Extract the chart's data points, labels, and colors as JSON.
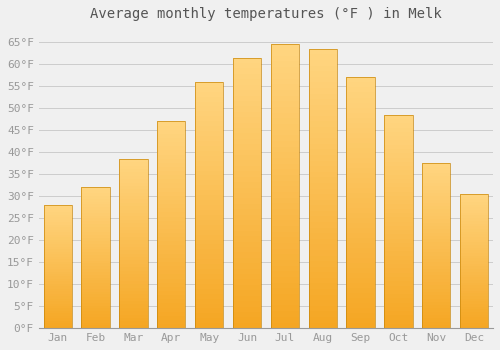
{
  "title": "Average monthly temperatures (°F ) in Melk",
  "months": [
    "Jan",
    "Feb",
    "Mar",
    "Apr",
    "May",
    "Jun",
    "Jul",
    "Aug",
    "Sep",
    "Oct",
    "Nov",
    "Dec"
  ],
  "values": [
    28,
    32,
    38.5,
    47,
    56,
    61.5,
    64.5,
    63.5,
    57,
    48.5,
    37.5,
    30.5
  ],
  "bar_color_bottom": "#F5A623",
  "bar_color_top": "#FFD580",
  "bar_edge_color": "#C8860A",
  "background_color": "#F0F0F0",
  "grid_color": "#CCCCCC",
  "text_color": "#999999",
  "ylim": [
    0,
    68
  ],
  "yticks": [
    0,
    5,
    10,
    15,
    20,
    25,
    30,
    35,
    40,
    45,
    50,
    55,
    60,
    65
  ],
  "ytick_labels": [
    "0°F",
    "5°F",
    "10°F",
    "15°F",
    "20°F",
    "25°F",
    "30°F",
    "35°F",
    "40°F",
    "45°F",
    "50°F",
    "55°F",
    "60°F",
    "65°F"
  ],
  "title_fontsize": 10,
  "tick_fontsize": 8,
  "bar_width": 0.75
}
